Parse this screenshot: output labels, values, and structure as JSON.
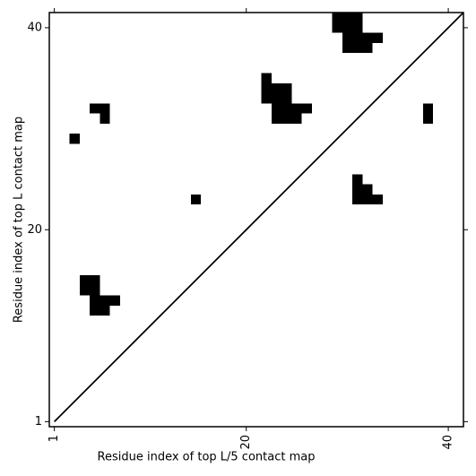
{
  "chart_data": {
    "type": "contact-map",
    "xlabel": "Residue index of top L/5 contact map",
    "ylabel": "Residue index of top L contact map",
    "xlim": [
      0.5,
      41.5
    ],
    "ylim": [
      0.5,
      41.5
    ],
    "xticks": [
      1,
      20,
      40
    ],
    "yticks": [
      1,
      20,
      40
    ],
    "color": "#000000",
    "points": {
      "x": [
        3,
        5,
        6,
        6,
        15,
        22,
        22,
        22,
        23,
        24,
        23,
        24,
        23,
        24,
        25,
        26,
        23,
        24,
        25,
        29,
        30,
        31,
        29,
        30,
        31,
        30,
        31,
        32,
        33,
        30,
        31,
        32,
        38,
        38,
        31,
        31,
        32,
        31,
        32,
        33,
        4,
        5,
        4,
        5,
        5,
        6,
        7,
        5,
        6
      ],
      "y": [
        29,
        32,
        32,
        31,
        23,
        35,
        34,
        33,
        34,
        34,
        33,
        33,
        32,
        32,
        32,
        32,
        31,
        31,
        31,
        41,
        41,
        41,
        40,
        40,
        40,
        39,
        39,
        39,
        39,
        38,
        38,
        38,
        32,
        31,
        25,
        24,
        24,
        23,
        23,
        23,
        15,
        15,
        14,
        14,
        13,
        13,
        13,
        12,
        12
      ]
    }
  }
}
